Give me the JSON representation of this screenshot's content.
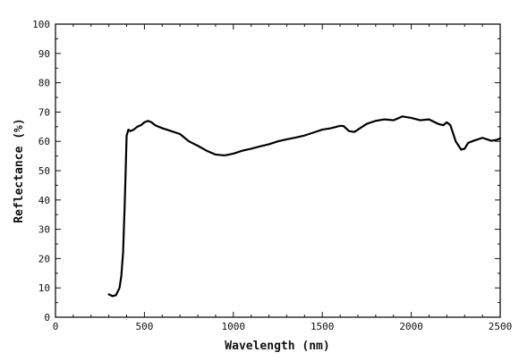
{
  "chart_data": {
    "type": "line",
    "title": "",
    "xlabel": "Wavelength (nm)",
    "ylabel": "Reflectance (%)",
    "xlim": [
      0,
      2500
    ],
    "ylim": [
      0,
      100
    ],
    "xticks": [
      0,
      500,
      1000,
      1500,
      2000,
      2500
    ],
    "yticks": [
      0,
      10,
      20,
      30,
      40,
      50,
      60,
      70,
      80,
      90,
      100
    ],
    "grid": false,
    "legend": "none",
    "series": [
      {
        "x": [
          300,
          320,
          340,
          360,
          370,
          380,
          390,
          400,
          410,
          420,
          440,
          460,
          480,
          500,
          520,
          540,
          560,
          580,
          600,
          650,
          700,
          720,
          750,
          800,
          850,
          900,
          950,
          1000,
          1050,
          1100,
          1150,
          1200,
          1250,
          1300,
          1350,
          1400,
          1450,
          1500,
          1550,
          1600,
          1620,
          1650,
          1680,
          1700,
          1750,
          1800,
          1850,
          1900,
          1950,
          2000,
          2050,
          2100,
          2150,
          2180,
          2200,
          2220,
          2250,
          2280,
          2300,
          2320,
          2350,
          2400,
          2420,
          2450,
          2480,
          2500
        ],
        "y": [
          7.8,
          7.2,
          7.5,
          10,
          14,
          22,
          40,
          62,
          64,
          63.5,
          64,
          65,
          65.5,
          66.5,
          67,
          66.5,
          65.5,
          65,
          64.5,
          63.5,
          62.5,
          61.5,
          60,
          58.5,
          56.8,
          55.5,
          55.2,
          55.8,
          56.8,
          57.5,
          58.3,
          59,
          60,
          60.7,
          61.3,
          62,
          63,
          64,
          64.5,
          65.3,
          65.2,
          63.5,
          63.2,
          64,
          66,
          67,
          67.5,
          67.2,
          68.5,
          68,
          67.2,
          67.5,
          66,
          65.5,
          66.5,
          65.5,
          60,
          57.2,
          57.5,
          59.5,
          60.2,
          61.2,
          60.8,
          60.2,
          60.5,
          61
        ]
      }
    ]
  }
}
